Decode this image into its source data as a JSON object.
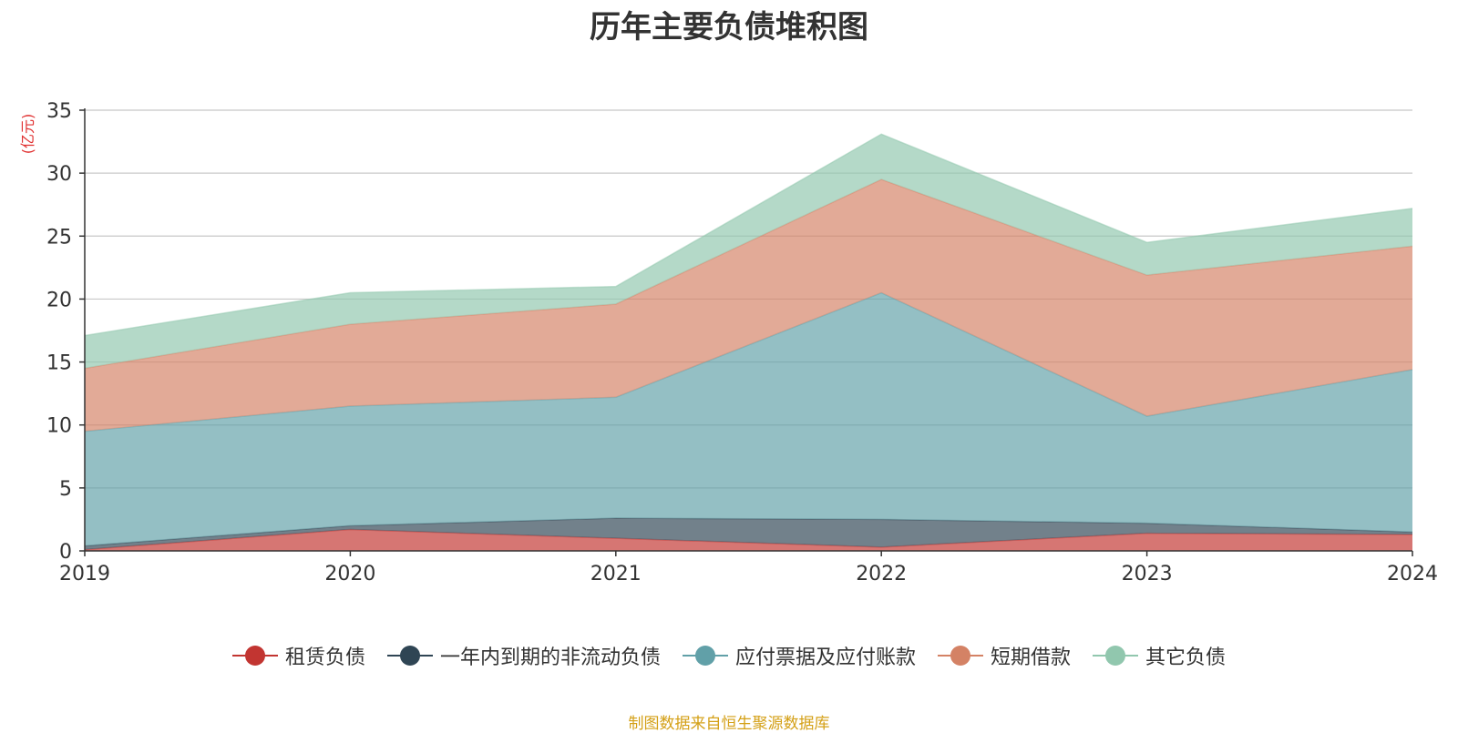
{
  "chart_data": {
    "type": "area",
    "stacked": true,
    "title": "历年主要负债堆积图",
    "y_unit": "(亿元)",
    "x": [
      "2019",
      "2020",
      "2021",
      "2022",
      "2023",
      "2024"
    ],
    "ylim": [
      0,
      35
    ],
    "yticks": [
      "0",
      "5",
      "10",
      "15",
      "20",
      "25",
      "30",
      "35"
    ],
    "grid": true,
    "legend_position": "bottom",
    "series": [
      {
        "name": "租赁负债",
        "color": "#c23531",
        "values": [
          0.1,
          1.7,
          1.0,
          0.3,
          1.4,
          1.3
        ]
      },
      {
        "name": "一年内到期的非流动负债",
        "color": "#2f4554",
        "values": [
          0.3,
          0.3,
          1.6,
          2.2,
          0.8,
          0.2
        ]
      },
      {
        "name": "应付票据及应付账款",
        "color": "#61a0a8",
        "values": [
          9.1,
          9.5,
          9.6,
          18.0,
          8.5,
          12.9
        ]
      },
      {
        "name": "短期借款",
        "color": "#d48265",
        "values": [
          5.0,
          6.5,
          7.4,
          9.0,
          11.2,
          9.8
        ]
      },
      {
        "name": "其它负债",
        "color": "#91c7ae",
        "values": [
          2.6,
          2.5,
          1.4,
          3.6,
          2.6,
          3.0
        ]
      }
    ]
  },
  "footer": {
    "source_text": "制图数据来自恒生聚源数据库",
    "source_color": "#d4a017"
  }
}
